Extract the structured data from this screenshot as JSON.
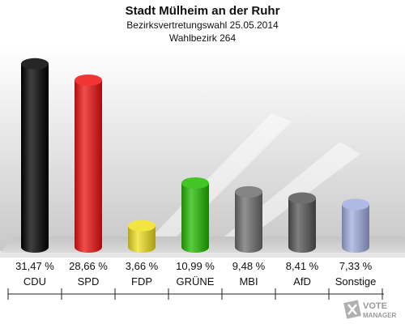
{
  "header": {
    "title": "Stadt Mülheim an der Ruhr",
    "subtitle": "Bezirksvertretungswahl 25.05.2014",
    "district": "Wahlbezirk 264"
  },
  "logo": {
    "line1": "VOTE",
    "line2": "MANAGER",
    "icon": "ballot-cross-icon"
  },
  "chart_data": {
    "type": "bar",
    "categories": [
      "CDU",
      "SPD",
      "FDP",
      "GRÜNE",
      "MBI",
      "AfD",
      "Sonstige"
    ],
    "values": [
      31.47,
      28.66,
      3.66,
      10.99,
      9.48,
      8.41,
      7.33
    ],
    "value_labels": [
      "31,47 %",
      "28,66 %",
      "3,66 %",
      "10,99 %",
      "9,48 %",
      "8,41 %",
      "7,33 %"
    ],
    "colors": [
      "#000000",
      "#ee1111",
      "#f0e020",
      "#22bb00",
      "#6e6e6e",
      "#555555",
      "#a0aee0"
    ],
    "ylim": [
      0,
      32
    ],
    "grid": false,
    "legend": "none"
  }
}
